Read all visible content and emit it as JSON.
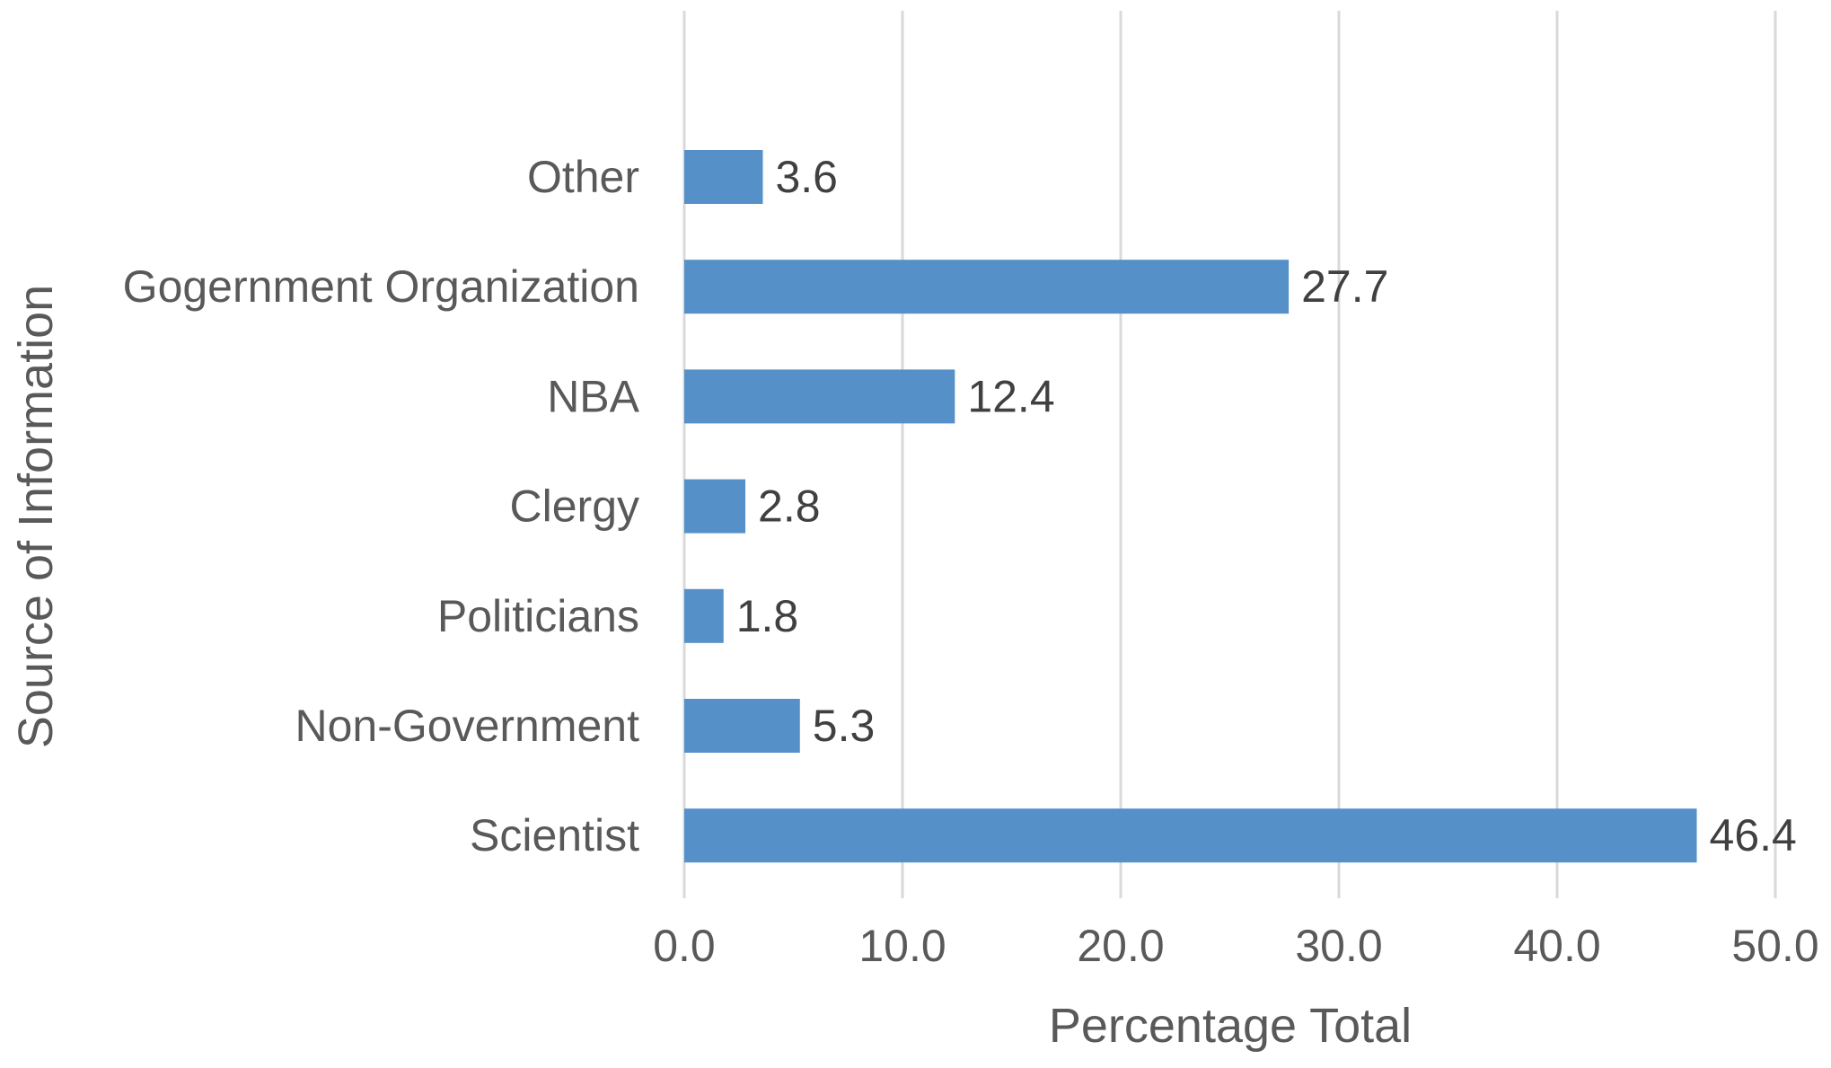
{
  "chart_data": {
    "type": "bar",
    "orientation": "horizontal",
    "categories": [
      "Other",
      "Gogernment Organization",
      "NBA",
      "Clergy",
      "Politicians",
      "Non-Government",
      "Scientist"
    ],
    "values": [
      3.6,
      27.7,
      12.4,
      2.8,
      1.8,
      5.3,
      46.4
    ],
    "value_labels": [
      "3.6",
      "27.7",
      "12.4",
      "2.8",
      "1.8",
      "5.3",
      "46.4"
    ],
    "xlabel": "Percentage Total",
    "ylabel": "Source of Information",
    "xlim": [
      0,
      50
    ],
    "xticks": [
      0,
      10,
      20,
      30,
      40,
      50
    ],
    "xtick_labels": [
      "0.0",
      "10.0",
      "20.0",
      "30.0",
      "40.0",
      "50.0"
    ],
    "grid": "vertical",
    "legend": "none",
    "bar_color": "#5590c8"
  }
}
